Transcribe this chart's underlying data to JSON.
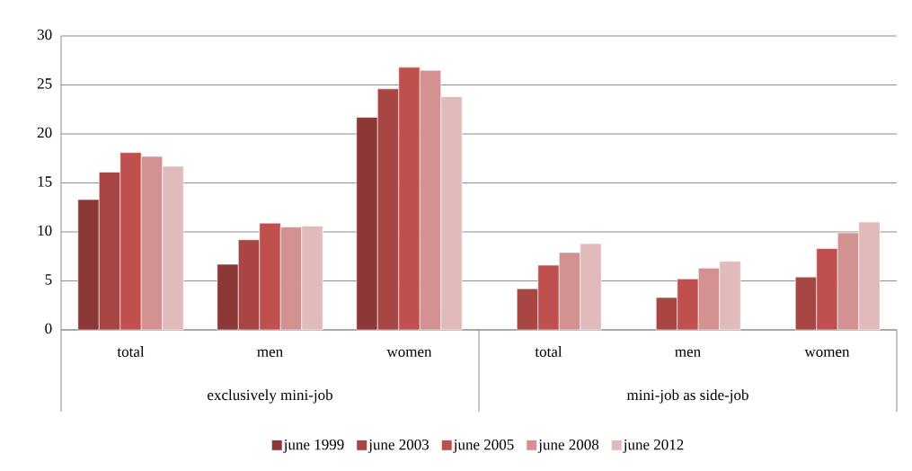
{
  "chart_data": {
    "type": "bar",
    "categories": [
      "total",
      "men",
      "women",
      "total",
      "men",
      "women"
    ],
    "series": [
      {
        "name": "june 1999",
        "color": "#8c3836",
        "values": [
          13.3,
          6.7,
          21.7,
          null,
          null,
          null
        ]
      },
      {
        "name": "june 2003",
        "color": "#a84644",
        "values": [
          16.1,
          9.2,
          24.6,
          4.2,
          3.3,
          5.4
        ]
      },
      {
        "name": "june 2005",
        "color": "#c0504d",
        "values": [
          18.1,
          10.9,
          26.8,
          6.6,
          5.2,
          8.3
        ]
      },
      {
        "name": "june 2008",
        "color": "#d39291",
        "values": [
          17.7,
          10.5,
          26.5,
          7.9,
          6.3,
          9.9
        ]
      },
      {
        "name": "june 2012",
        "color": "#e1bbbb",
        "values": [
          16.7,
          10.6,
          23.8,
          8.8,
          7.0,
          11.0
        ]
      }
    ],
    "annotations": [
      "exclusively mini-job",
      "mini-job as side-job"
    ],
    "ylim": [
      0,
      30
    ],
    "yticks": [
      0,
      5,
      10,
      15,
      20,
      25,
      30
    ],
    "grid": "y",
    "legend": "bottom"
  }
}
